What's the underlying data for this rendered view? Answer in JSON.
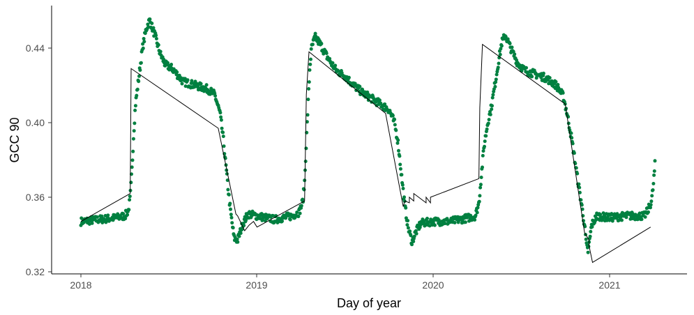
{
  "chart_data": {
    "type": "scatter",
    "title": "",
    "xlabel": "Day of year",
    "ylabel": "GCC 90",
    "xlim": [
      2017.85,
      2021.43
    ],
    "ylim": [
      0.321,
      0.457
    ],
    "x_ticks": [
      2018,
      2019,
      2020,
      2021
    ],
    "x_tick_labels": [
      "2018",
      "2019",
      "2020",
      "2021"
    ],
    "y_ticks": [
      0.32,
      0.36,
      0.4,
      0.44
    ],
    "y_tick_labels": [
      "0.32",
      "0.36",
      "0.40",
      "0.44"
    ],
    "grid": false,
    "legend": "none",
    "colors": {
      "points": "#008040",
      "line": "#000000",
      "axis": "#000000",
      "tick_text": "#4d4d4d"
    },
    "series": [
      {
        "kind": "points",
        "anchors": [
          [
            2018.0,
            0.347
          ],
          [
            2018.1,
            0.348
          ],
          [
            2018.2,
            0.349
          ],
          [
            2018.25,
            0.35
          ],
          [
            2018.27,
            0.353
          ],
          [
            2018.28,
            0.36
          ],
          [
            2018.29,
            0.375
          ],
          [
            2018.3,
            0.395
          ],
          [
            2018.31,
            0.41
          ],
          [
            2018.33,
            0.425
          ],
          [
            2018.35,
            0.44
          ],
          [
            2018.37,
            0.45
          ],
          [
            2018.39,
            0.455
          ],
          [
            2018.42,
            0.447
          ],
          [
            2018.45,
            0.437
          ],
          [
            2018.48,
            0.431
          ],
          [
            2018.52,
            0.429
          ],
          [
            2018.58,
            0.422
          ],
          [
            2018.65,
            0.42
          ],
          [
            2018.72,
            0.418
          ],
          [
            2018.76,
            0.415
          ],
          [
            2018.79,
            0.405
          ],
          [
            2018.81,
            0.39
          ],
          [
            2018.83,
            0.37
          ],
          [
            2018.85,
            0.352
          ],
          [
            2018.87,
            0.338
          ],
          [
            2018.89,
            0.337
          ],
          [
            2018.92,
            0.346
          ],
          [
            2018.95,
            0.351
          ],
          [
            2019.05,
            0.349
          ],
          [
            2019.1,
            0.348
          ],
          [
            2019.2,
            0.35
          ],
          [
            2019.24,
            0.352
          ],
          [
            2019.26,
            0.358
          ],
          [
            2019.27,
            0.368
          ],
          [
            2019.28,
            0.39
          ],
          [
            2019.29,
            0.41
          ],
          [
            2019.3,
            0.43
          ],
          [
            2019.31,
            0.44
          ],
          [
            2019.33,
            0.446
          ],
          [
            2019.36,
            0.442
          ],
          [
            2019.4,
            0.435
          ],
          [
            2019.45,
            0.428
          ],
          [
            2019.5,
            0.425
          ],
          [
            2019.55,
            0.42
          ],
          [
            2019.6,
            0.416
          ],
          [
            2019.65,
            0.413
          ],
          [
            2019.7,
            0.41
          ],
          [
            2019.75,
            0.407
          ],
          [
            2019.78,
            0.4
          ],
          [
            2019.8,
            0.39
          ],
          [
            2019.82,
            0.372
          ],
          [
            2019.84,
            0.355
          ],
          [
            2019.86,
            0.343
          ],
          [
            2019.88,
            0.336
          ],
          [
            2019.9,
            0.341
          ],
          [
            2019.93,
            0.346
          ],
          [
            2020.0,
            0.347
          ],
          [
            2020.1,
            0.347
          ],
          [
            2020.2,
            0.349
          ],
          [
            2020.24,
            0.35
          ],
          [
            2020.26,
            0.357
          ],
          [
            2020.27,
            0.368
          ],
          [
            2020.28,
            0.378
          ],
          [
            2020.29,
            0.388
          ],
          [
            2020.31,
            0.4
          ],
          [
            2020.33,
            0.408
          ],
          [
            2020.35,
            0.42
          ],
          [
            2020.37,
            0.432
          ],
          [
            2020.39,
            0.443
          ],
          [
            2020.41,
            0.447
          ],
          [
            2020.44,
            0.44
          ],
          [
            2020.48,
            0.432
          ],
          [
            2020.52,
            0.428
          ],
          [
            2020.58,
            0.426
          ],
          [
            2020.64,
            0.424
          ],
          [
            2020.7,
            0.42
          ],
          [
            2020.74,
            0.414
          ],
          [
            2020.76,
            0.405
          ],
          [
            2020.78,
            0.395
          ],
          [
            2020.8,
            0.383
          ],
          [
            2020.82,
            0.37
          ],
          [
            2020.84,
            0.358
          ],
          [
            2020.86,
            0.345
          ],
          [
            2020.87,
            0.334
          ],
          [
            2020.88,
            0.331
          ],
          [
            2020.9,
            0.345
          ],
          [
            2020.93,
            0.35
          ],
          [
            2021.0,
            0.349
          ],
          [
            2021.1,
            0.35
          ],
          [
            2021.2,
            0.35
          ],
          [
            2021.22,
            0.353
          ],
          [
            2021.24,
            0.358
          ],
          [
            2021.25,
            0.366
          ],
          [
            2021.26,
            0.378
          ]
        ]
      },
      {
        "kind": "line",
        "x": [
          2018.0,
          2018.28,
          2018.285,
          2018.78,
          2018.88,
          2018.89,
          2018.93,
          2018.955,
          2018.98,
          2019.0,
          2019.27,
          2019.28,
          2019.295,
          2019.73,
          2019.83,
          2019.84,
          2019.865,
          2019.865,
          2019.89,
          2019.89,
          2019.96,
          2019.96,
          2019.985,
          2019.985,
          2020.26,
          2020.265,
          2020.28,
          2020.75,
          2020.86,
          2020.885,
          2020.885,
          2020.905,
          2021.235
        ],
        "y": [
          0.347,
          0.362,
          0.429,
          0.397,
          0.351,
          0.35,
          0.342,
          0.345,
          0.347,
          0.344,
          0.358,
          0.415,
          0.438,
          0.405,
          0.355,
          0.358,
          0.357,
          0.36,
          0.358,
          0.362,
          0.357,
          0.36,
          0.357,
          0.36,
          0.37,
          0.408,
          0.442,
          0.41,
          0.341,
          0.337,
          0.334,
          0.325,
          0.344
        ]
      }
    ]
  }
}
